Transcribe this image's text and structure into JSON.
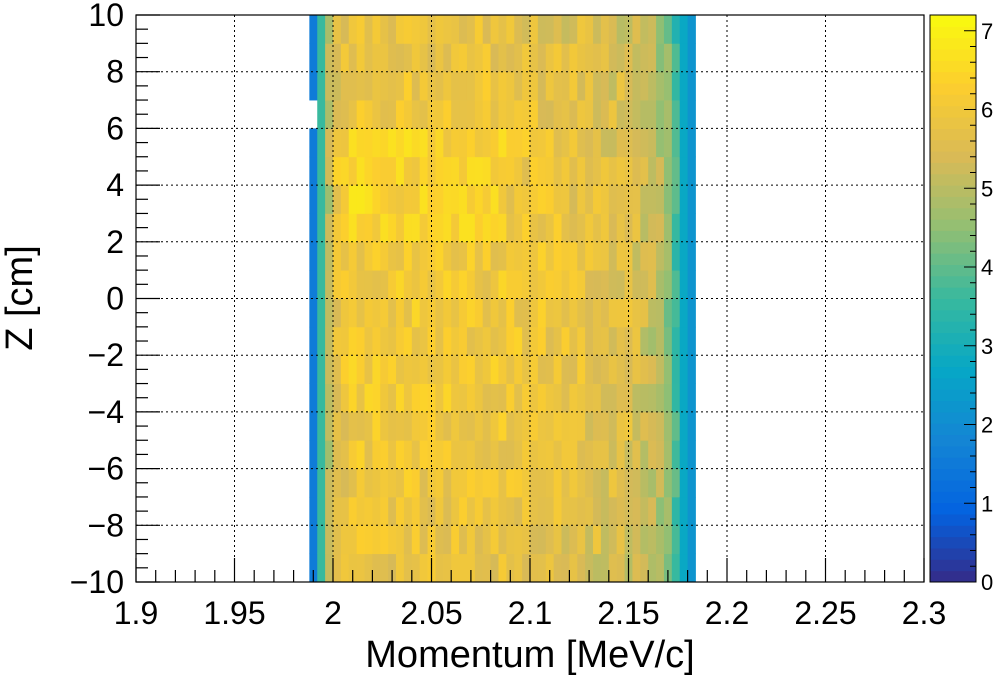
{
  "chart_data": {
    "type": "heatmap",
    "xlabel": "Momentum [MeV/c]",
    "ylabel": "Z [cm]",
    "xlim": [
      1.9,
      2.3
    ],
    "ylim": [
      -10,
      10
    ],
    "x_ticks": [
      "1.9",
      "1.95",
      "2",
      "2.05",
      "2.1",
      "2.15",
      "2.2",
      "2.25",
      "2.3"
    ],
    "x_tick_values": [
      1.9,
      1.95,
      2.0,
      2.05,
      2.1,
      2.15,
      2.2,
      2.25,
      2.3
    ],
    "y_ticks": [
      "−10",
      "−8",
      "−6",
      "−4",
      "−2",
      "0",
      "2",
      "4",
      "6",
      "8",
      "10"
    ],
    "y_tick_values": [
      -10,
      -8,
      -6,
      -4,
      -2,
      0,
      2,
      4,
      6,
      8,
      10
    ],
    "grid": true,
    "colorbar": {
      "range": [
        0,
        7.2
      ],
      "ticks": [
        "0",
        "1",
        "2",
        "3",
        "4",
        "5",
        "6",
        "7"
      ],
      "tick_values": [
        0,
        1,
        2,
        3,
        4,
        5,
        6,
        7
      ],
      "palette": [
        "#352a87",
        "#0363e1",
        "#1485d4",
        "#06a7c6",
        "#38b99e",
        "#92bf73",
        "#d9ba56",
        "#fcce2e",
        "#f9fb0e"
      ]
    },
    "x_bin_width": 0.004,
    "y_bin_width": 1.0,
    "x_bin_start": 1.988,
    "x_bin_count": 49,
    "y_bin_start": -10,
    "y_bin_count": 20,
    "z_profile_x": [
      {
        "x": 1.988,
        "z": 0.5
      },
      {
        "x": 1.992,
        "z": 2.6
      },
      {
        "x": 1.996,
        "z": 4.6
      },
      {
        "x": 2.0,
        "z": 5.6
      },
      {
        "x": 2.01,
        "z": 6.1
      },
      {
        "x": 2.1,
        "z": 6.0
      },
      {
        "x": 2.15,
        "z": 5.6
      },
      {
        "x": 2.166,
        "z": 5.0
      },
      {
        "x": 2.172,
        "z": 4.2
      },
      {
        "x": 2.176,
        "z": 3.3
      },
      {
        "x": 2.18,
        "z": 2.2
      }
    ],
    "empty_cells": [
      {
        "x": 1.988,
        "y_from": 6,
        "y_to": 7
      }
    ]
  }
}
